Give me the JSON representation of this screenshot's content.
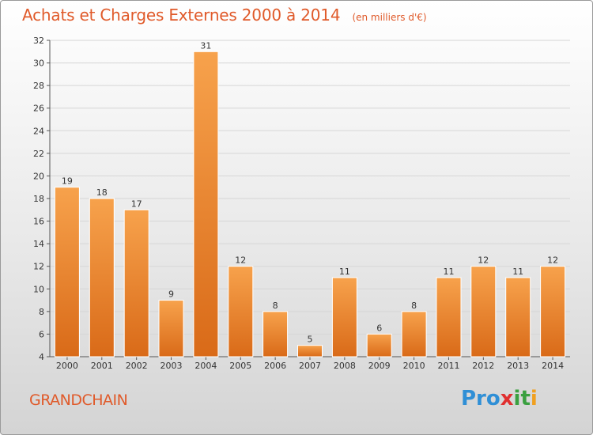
{
  "header": {
    "title": "Achats et Charges Externes 2000 à 2014",
    "unit": "(en milliers d'€)"
  },
  "footer": {
    "commune": "GRANDCHAIN",
    "logo": [
      "Pro",
      "x",
      "it",
      "i"
    ]
  },
  "colors": {
    "title": "#e05a2a",
    "bar_light": "#f7a24c",
    "bar_dark": "#d96a18",
    "grid": "#d6d6d6"
  },
  "chart_data": {
    "type": "bar",
    "title": "Achats et Charges Externes 2000 à 2014",
    "categories": [
      "2000",
      "2001",
      "2002",
      "2003",
      "2004",
      "2005",
      "2006",
      "2007",
      "2008",
      "2009",
      "2010",
      "2011",
      "2012",
      "2013",
      "2014"
    ],
    "values": [
      19,
      18,
      17,
      9,
      31,
      12,
      8,
      5,
      11,
      6,
      8,
      11,
      12,
      11,
      12
    ],
    "ylim": [
      4,
      32
    ],
    "yticks": [
      4,
      6,
      8,
      10,
      12,
      14,
      16,
      18,
      20,
      22,
      24,
      26,
      28,
      30,
      32
    ],
    "grid": true,
    "xlabel": "",
    "ylabel": ""
  }
}
